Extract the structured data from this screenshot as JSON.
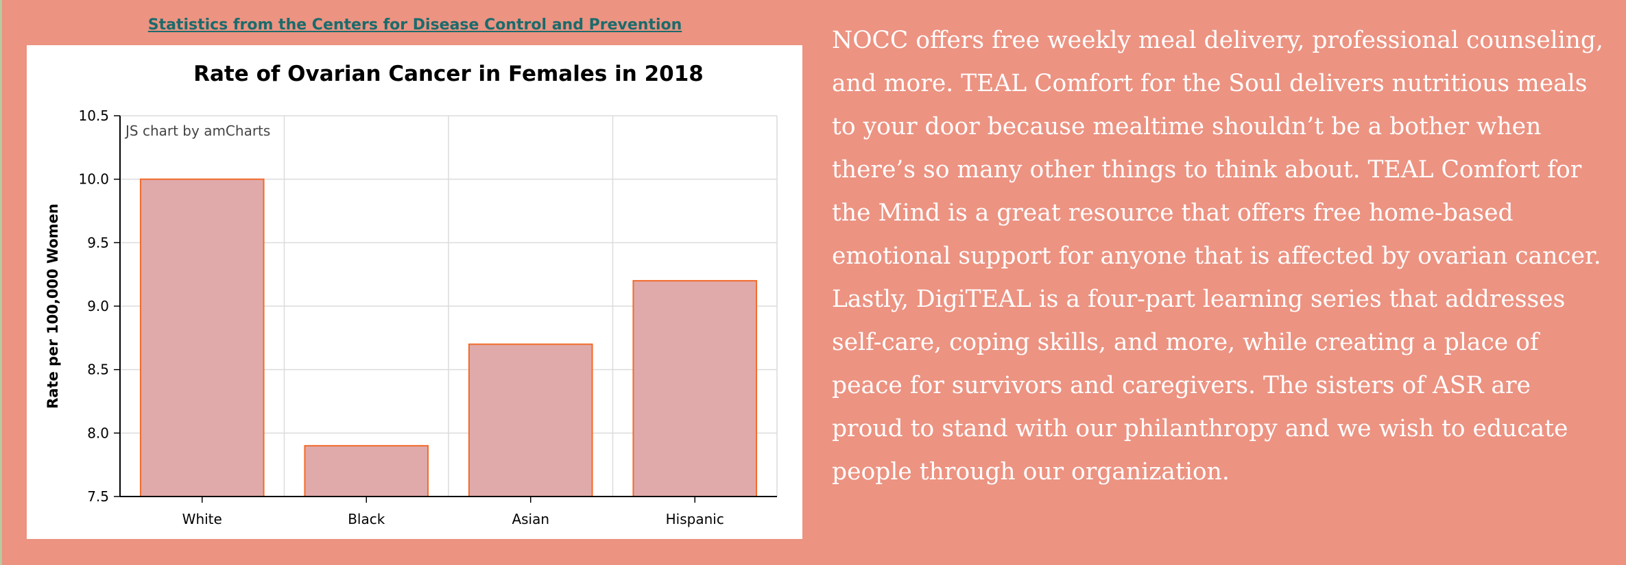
{
  "source_link": "Statistics from the Centers for Disease Control and Prevention",
  "chart_credit": "JS chart by amCharts",
  "paragraph": "NOCC offers free weekly meal delivery, professional counseling, and more. TEAL Comfort for the Soul delivers nutritious meals to your door because mealtime shouldn’t be a bother when there’s so many other things to think about. TEAL Comfort for the Mind is a great resource that offers free home-based emotional support for anyone that is affected by ovarian cancer. Lastly, DigiTEAL is a four-part learning series that addresses self-care, coping skills, and more, while creating a place of peace for survivors and caregivers. The sisters of ASR are proud to stand with our philanthropy and we wish to educate people through our organization.",
  "colors": {
    "page_background": "#ec9382",
    "link": "#1b6b6b",
    "bar_fill": "#e0aaaa",
    "bar_stroke": "#f26a2a"
  },
  "chart_data": {
    "type": "bar",
    "title": "Rate of Ovarian Cancer in Females in 2018",
    "xlabel": "",
    "ylabel": "Rate per 100,000 Women",
    "categories": [
      "White",
      "Black",
      "Asian",
      "Hispanic"
    ],
    "values": [
      10.0,
      7.9,
      8.7,
      9.2
    ],
    "ylim": [
      7.5,
      10.5
    ],
    "yticks": [
      "7.5",
      "8.0",
      "8.5",
      "9.0",
      "9.5",
      "10.0",
      "10.5"
    ],
    "grid": true,
    "legend": "none"
  }
}
